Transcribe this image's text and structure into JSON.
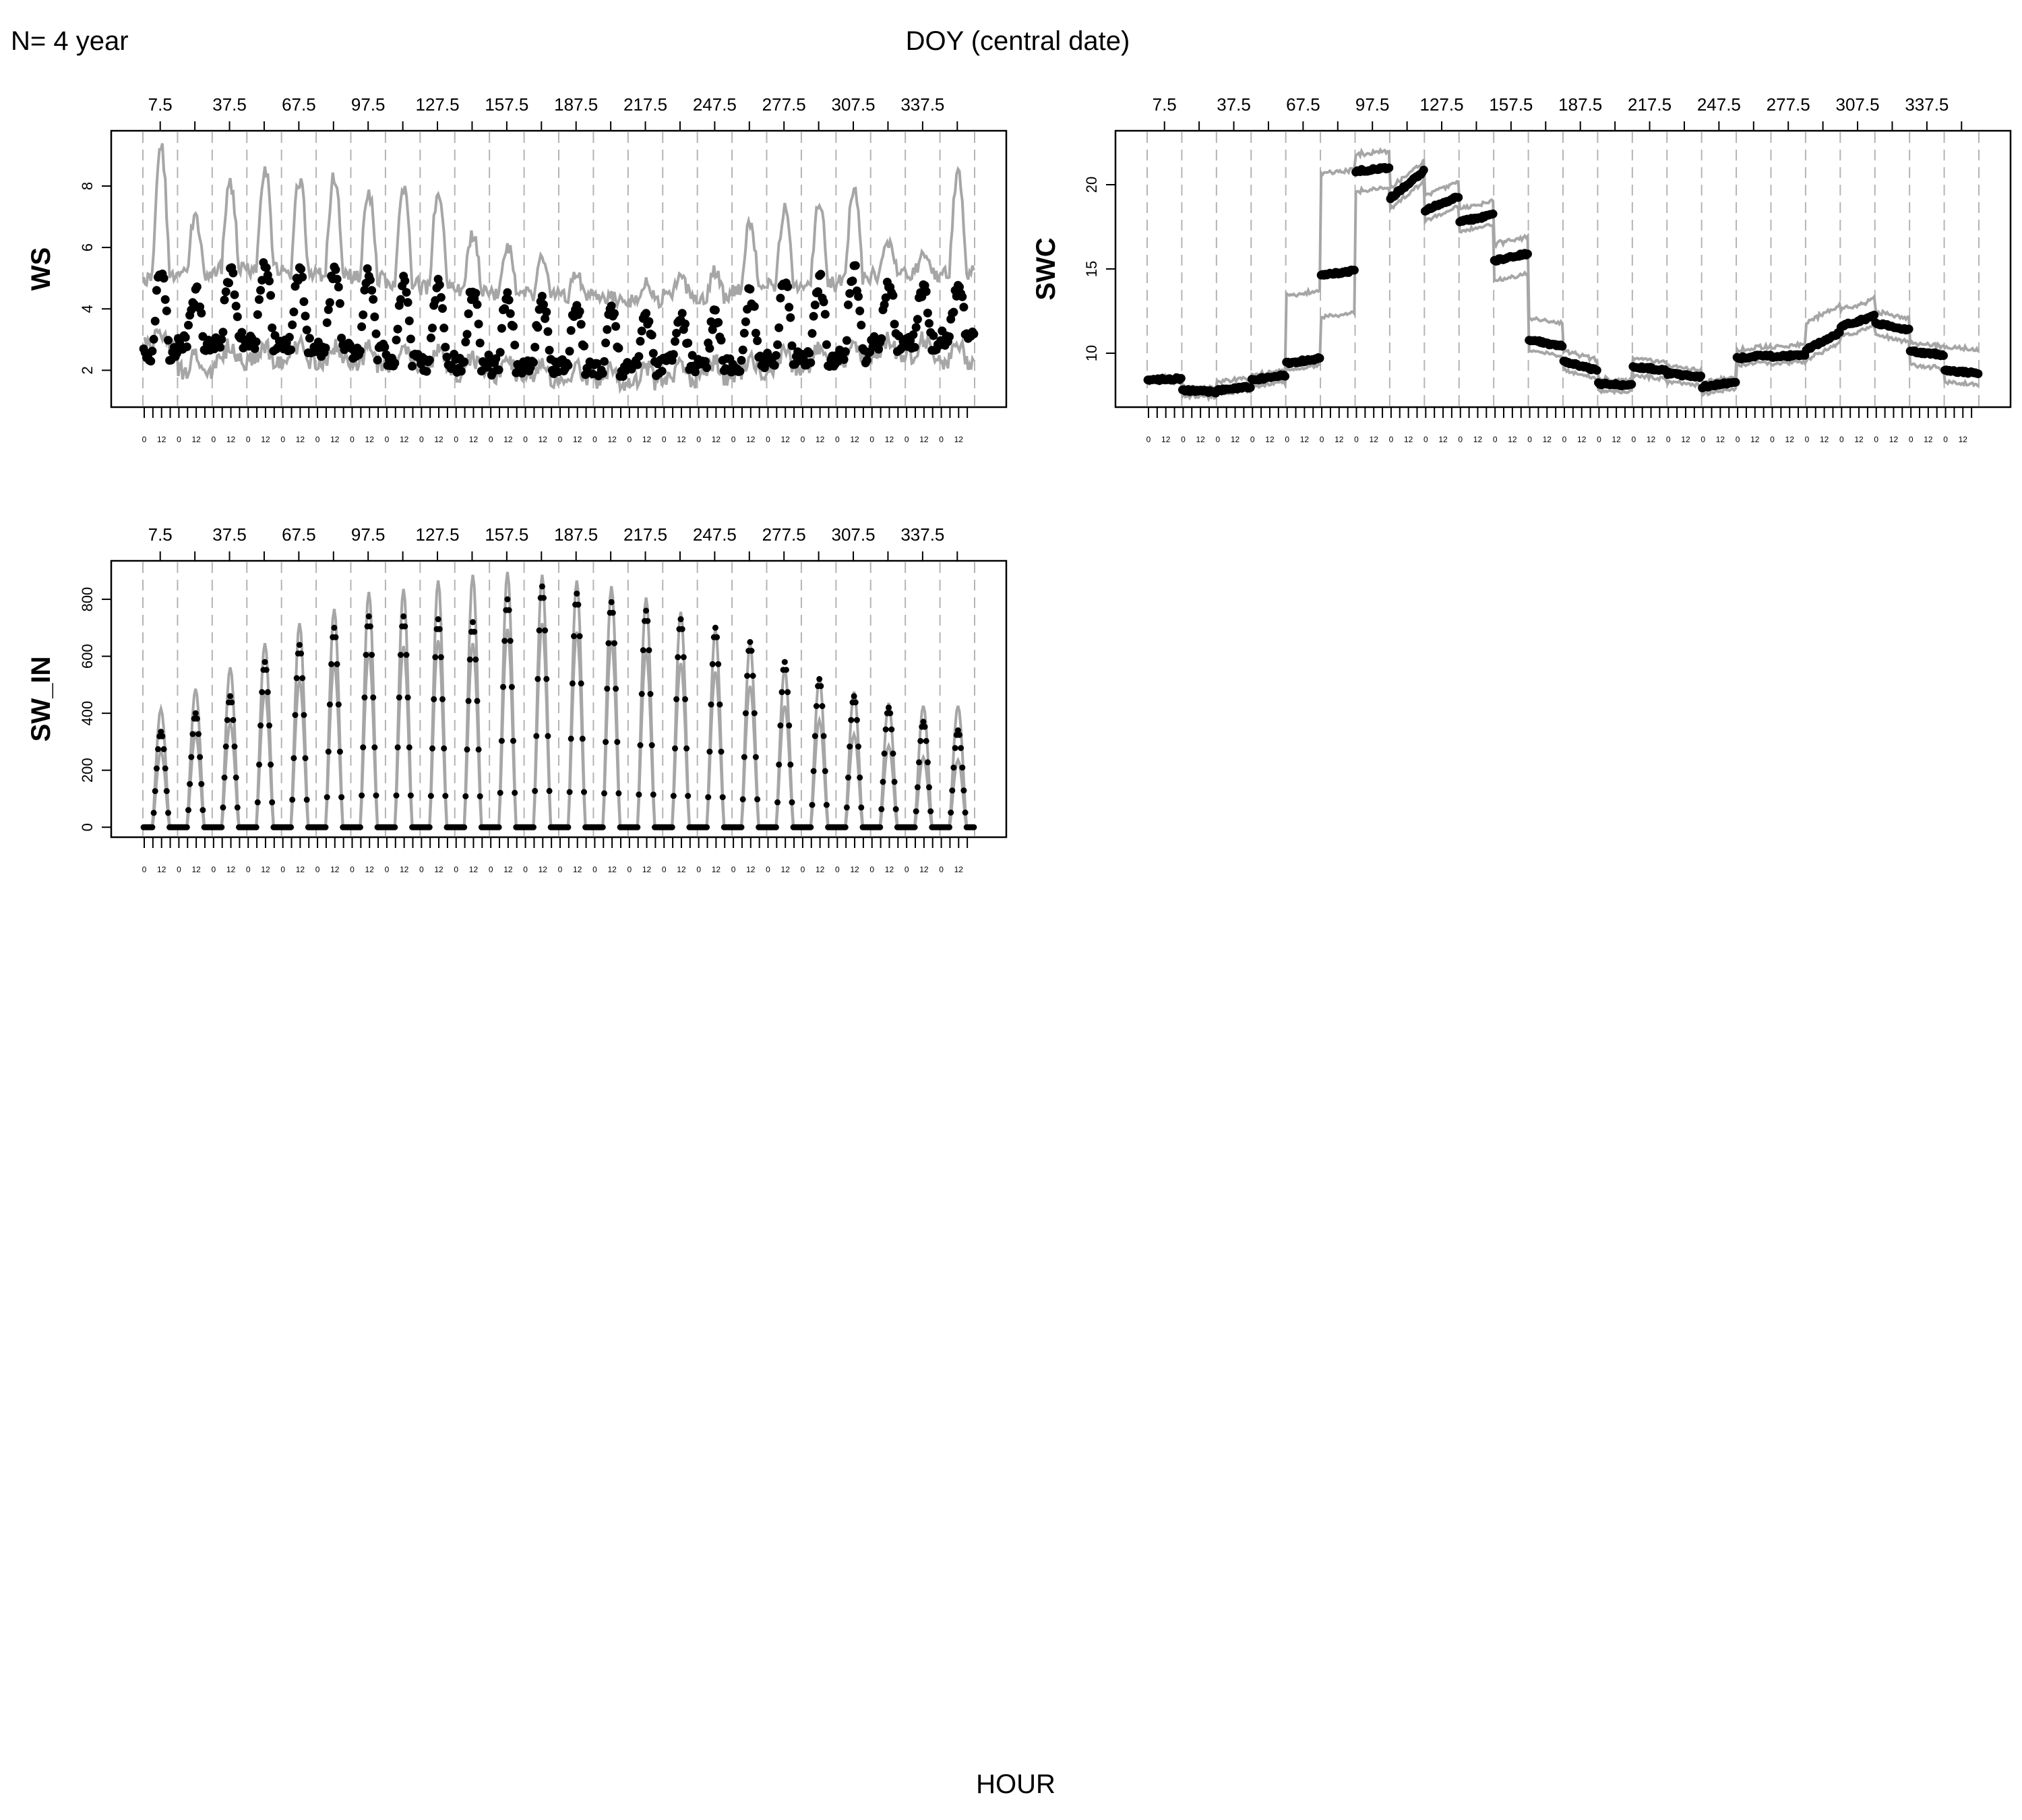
{
  "figure": {
    "n_label": "N= 4 year",
    "top_label": "DOY (central date)",
    "bottom_label": "HOUR",
    "colors": {
      "band": "#a6a6a6",
      "points": "#000000",
      "grid": "#b4b4b4",
      "axis": "#000000",
      "background": "#ffffff"
    }
  },
  "chart_data": [
    {
      "type": "scatter",
      "panel": "WS",
      "ylabel": "WS",
      "ylim": [
        0.8,
        9.8
      ],
      "yticks": [
        2,
        4,
        6,
        8
      ],
      "n_days": 24,
      "hours_per_day": 24,
      "doy_ticks": [
        "7.5",
        "37.5",
        "67.5",
        "97.5",
        "127.5",
        "157.5",
        "187.5",
        "217.5",
        "247.5",
        "277.5",
        "307.5",
        "337.5"
      ],
      "hour_ticks": [
        "0",
        "12"
      ],
      "series": [
        {
          "role": "median_points",
          "daily_mean": [
            3.2,
            3.3,
            3.5,
            3.5,
            3.4,
            3.3,
            3.2,
            3.0,
            2.9,
            2.8,
            2.7,
            2.7,
            2.6,
            2.5,
            2.5,
            2.6,
            2.6,
            2.8,
            3.0,
            3.0,
            3.2,
            3.3,
            3.3,
            3.4
          ],
          "daily_amp": [
            1.6,
            1.0,
            1.4,
            1.6,
            1.5,
            1.6,
            1.6,
            1.6,
            1.6,
            1.5,
            1.4,
            1.3,
            1.3,
            1.2,
            1.0,
            0.9,
            1.0,
            1.4,
            1.5,
            1.6,
            1.7,
            1.2,
            1.1,
            1.0
          ]
        },
        {
          "role": "upper_band",
          "daily_peak": [
            9.3,
            7.0,
            8.1,
            8.6,
            8.2,
            8.3,
            7.7,
            7.9,
            7.8,
            6.4,
            6.1,
            5.6,
            5.1,
            4.4,
            4.8,
            5.0,
            5.2,
            6.8,
            7.2,
            7.4,
            7.9,
            6.1,
            5.7,
            8.4
          ]
        },
        {
          "role": "lower_band",
          "daily_level": [
            2.8,
            2.0,
            2.3,
            2.3,
            2.3,
            2.3,
            2.2,
            2.2,
            2.1,
            1.9,
            1.8,
            1.7,
            1.6,
            1.6,
            1.6,
            1.7,
            1.8,
            1.9,
            2.1,
            2.2,
            2.4,
            2.5,
            2.5,
            2.3
          ]
        }
      ]
    },
    {
      "type": "scatter",
      "panel": "SWC",
      "ylabel": "SWC",
      "ylim": [
        6.8,
        23.2
      ],
      "yticks": [
        10,
        15,
        20
      ],
      "n_days": 24,
      "hours_per_day": 24,
      "doy_ticks": [
        "7.5",
        "37.5",
        "67.5",
        "97.5",
        "127.5",
        "157.5",
        "187.5",
        "217.5",
        "247.5",
        "277.5",
        "307.5",
        "337.5"
      ],
      "hour_ticks": [
        "0",
        "12"
      ],
      "series": [
        {
          "role": "median_points",
          "daily_start": [
            8.4,
            7.8,
            7.8,
            8.4,
            9.4,
            14.6,
            20.8,
            19.2,
            18.5,
            17.8,
            15.5,
            10.8,
            9.5,
            8.2,
            9.2,
            8.8,
            8.0,
            9.7,
            9.8,
            10.2,
            11.6,
            11.8,
            10.1,
            9.0
          ],
          "daily_end": [
            8.5,
            7.7,
            8.0,
            8.7,
            9.7,
            14.9,
            21.0,
            20.8,
            19.3,
            18.2,
            15.9,
            10.4,
            9.0,
            8.1,
            9.0,
            8.6,
            8.3,
            9.9,
            9.9,
            11.2,
            12.2,
            11.4,
            9.9,
            8.8
          ]
        },
        {
          "role": "upper_band",
          "daily_offset": [
            0.15,
            0.2,
            0.5,
            0.3,
            4.0,
            6.0,
            1.0,
            0.6,
            0.9,
            0.8,
            1.0,
            1.3,
            0.6,
            0.3,
            0.5,
            0.4,
            0.3,
            0.5,
            0.6,
            1.6,
            1.0,
            0.7,
            0.5,
            1.4
          ]
        },
        {
          "role": "lower_band",
          "daily_offset": [
            0.15,
            0.3,
            0.2,
            0.4,
            0.4,
            2.5,
            1.2,
            0.6,
            0.6,
            0.6,
            1.2,
            0.6,
            0.5,
            0.4,
            0.5,
            0.5,
            0.4,
            0.4,
            0.4,
            0.6,
            0.6,
            0.7,
            0.8,
            0.7
          ]
        }
      ]
    },
    {
      "type": "scatter",
      "panel": "SW_IN",
      "ylabel": "SW_IN",
      "ylim": [
        -35,
        935
      ],
      "yticks": [
        0,
        200,
        400,
        600,
        800
      ],
      "n_days": 24,
      "hours_per_day": 24,
      "doy_ticks": [
        "7.5",
        "37.5",
        "67.5",
        "97.5",
        "127.5",
        "157.5",
        "187.5",
        "217.5",
        "247.5",
        "277.5",
        "307.5",
        "337.5"
      ],
      "hour_ticks": [
        "0",
        "12"
      ],
      "series": [
        {
          "role": "median_points",
          "daily_peak": [
            335,
            400,
            460,
            580,
            640,
            700,
            740,
            740,
            730,
            720,
            800,
            845,
            820,
            790,
            760,
            730,
            700,
            650,
            580,
            520,
            460,
            420,
            370,
            340
          ]
        },
        {
          "role": "upper_band",
          "daily_peak": [
            410,
            480,
            555,
            640,
            710,
            760,
            820,
            830,
            860,
            880,
            890,
            880,
            860,
            840,
            800,
            750,
            690,
            640,
            550,
            520,
            470,
            430,
            420,
            420
          ]
        },
        {
          "role": "lower_band",
          "daily_peak": [
            270,
            330,
            370,
            480,
            520,
            580,
            620,
            640,
            660,
            650,
            700,
            720,
            690,
            660,
            620,
            580,
            550,
            500,
            430,
            380,
            330,
            290,
            250,
            240
          ]
        }
      ]
    }
  ]
}
